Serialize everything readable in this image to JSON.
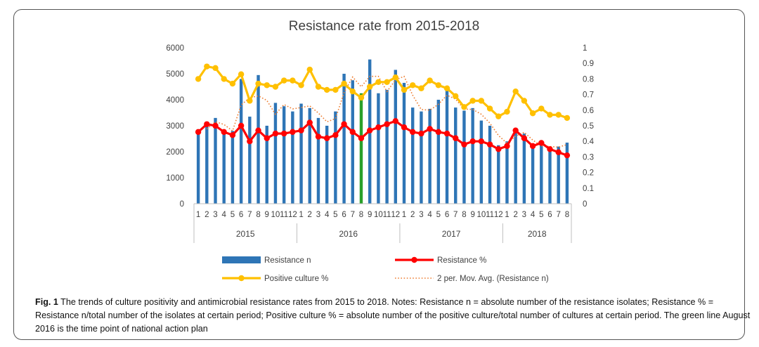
{
  "chart_data": {
    "type": "bar+line",
    "title": "Resistance rate from 2015-2018",
    "y_left": {
      "min": 0,
      "max": 6000,
      "ticks": [
        0,
        1000,
        2000,
        3000,
        4000,
        5000,
        6000
      ]
    },
    "y_right": {
      "min": 0,
      "max": 1,
      "ticks": [
        0,
        0.1,
        0.2,
        0.3,
        0.4,
        0.5,
        0.6,
        0.7,
        0.8,
        0.9,
        1
      ],
      "tick_labels": [
        "0",
        "0.1",
        "0.2",
        "0.3",
        "0.4",
        "0.5",
        "0.6",
        "0.7",
        "0.8",
        "0.9",
        "1"
      ]
    },
    "years": [
      {
        "label": "2015",
        "months": [
          "1",
          "2",
          "3",
          "4",
          "5",
          "6",
          "7",
          "8",
          "9",
          "10",
          "11",
          "12"
        ]
      },
      {
        "label": "2016",
        "months": [
          "1",
          "2",
          "3",
          "4",
          "5",
          "6",
          "7",
          "8",
          "9",
          "10",
          "11",
          "12"
        ]
      },
      {
        "label": "2017",
        "months": [
          "1",
          "2",
          "3",
          "4",
          "5",
          "6",
          "7",
          "8",
          "9",
          "10",
          "11",
          "12"
        ]
      },
      {
        "label": "2018",
        "months": [
          "1",
          "2",
          "3",
          "4",
          "5",
          "6",
          "7",
          "8"
        ]
      }
    ],
    "highlight_index": 19,
    "series": [
      {
        "name": "Resistance n",
        "type": "bar",
        "axis": "left",
        "color": "#2E75B6",
        "highlight_color": "#2AA02A",
        "values": [
          2750,
          3000,
          3300,
          2800,
          2800,
          4800,
          3350,
          4950,
          3000,
          3880,
          3750,
          3550,
          3850,
          3680,
          3300,
          3000,
          3550,
          5000,
          4750,
          4250,
          5550,
          4250,
          4380,
          5150,
          4650,
          3700,
          3550,
          3650,
          4000,
          4350,
          3700,
          3580,
          3680,
          3200,
          3000,
          2250,
          2400,
          2800,
          2700,
          2200,
          2250,
          2150,
          2200,
          2350
        ]
      },
      {
        "name": "Resistance %",
        "type": "line",
        "axis": "right",
        "color": "#FF0000",
        "values": [
          0.46,
          0.51,
          0.5,
          0.46,
          0.44,
          0.5,
          0.4,
          0.47,
          0.42,
          0.45,
          0.45,
          0.46,
          0.47,
          0.52,
          0.43,
          0.42,
          0.44,
          0.51,
          0.46,
          0.42,
          0.47,
          0.49,
          0.51,
          0.53,
          0.49,
          0.46,
          0.45,
          0.48,
          0.46,
          0.45,
          0.42,
          0.38,
          0.4,
          0.4,
          0.38,
          0.35,
          0.37,
          0.47,
          0.42,
          0.37,
          0.39,
          0.35,
          0.33,
          0.31
        ]
      },
      {
        "name": "Positive culture %",
        "type": "line",
        "axis": "right",
        "color": "#FFC000",
        "values": [
          0.8,
          0.88,
          0.87,
          0.8,
          0.77,
          0.83,
          0.66,
          0.77,
          0.76,
          0.75,
          0.79,
          0.79,
          0.76,
          0.86,
          0.75,
          0.73,
          0.73,
          0.77,
          0.72,
          0.68,
          0.75,
          0.78,
          0.78,
          0.81,
          0.73,
          0.76,
          0.74,
          0.79,
          0.76,
          0.74,
          0.69,
          0.62,
          0.66,
          0.66,
          0.61,
          0.56,
          0.59,
          0.72,
          0.66,
          0.58,
          0.61,
          0.57,
          0.57,
          0.55
        ]
      },
      {
        "name": "2 per. Mov. Avg. (Resistance n)",
        "type": "moving-average",
        "period": 2,
        "of": "Resistance n",
        "axis": "left",
        "color": "#ED7D31"
      }
    ],
    "legend": [
      {
        "name": "Resistance n",
        "style": "bar",
        "color": "#2E75B6"
      },
      {
        "name": "Resistance %",
        "style": "line-marker",
        "color": "#FF0000"
      },
      {
        "name": "Positive culture %",
        "style": "line-marker",
        "color": "#FFC000"
      },
      {
        "name": "2 per. Mov. Avg. (Resistance n)",
        "style": "dotted",
        "color": "#ED7D31"
      }
    ],
    "legend_position": "bottom"
  },
  "caption": {
    "label": "Fig. 1",
    "text": "The trends of culture positivity and antimicrobial resistance rates from 2015 to 2018. Notes: Resistance n = absolute number of the resistance isolates; Resistance % = Resistance n/total number of the isolates at certain period; Positive culture % = absolute number of the positive culture/total number of cultures at certain period. The green line August 2016 is the time point of national action plan"
  }
}
